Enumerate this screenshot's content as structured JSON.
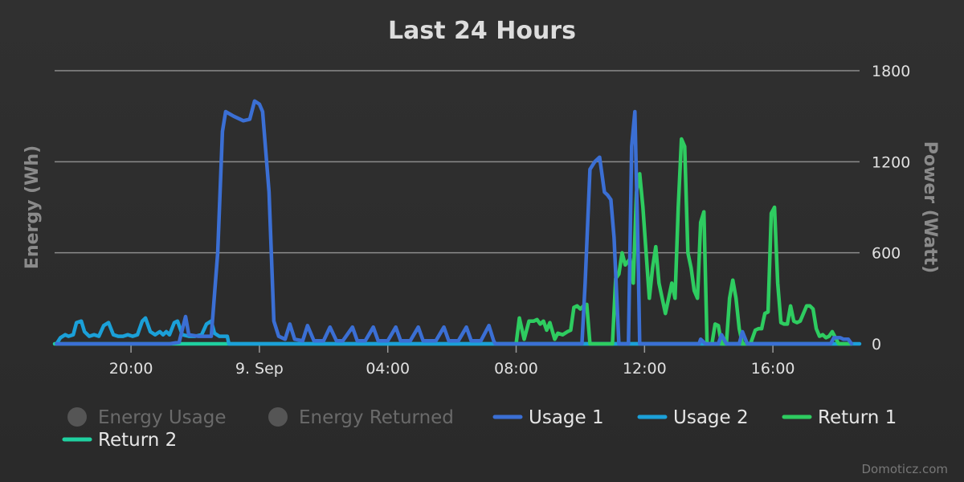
{
  "chart_data": {
    "type": "line",
    "title": "Last 24 Hours",
    "y_left": {
      "label": "Energy (Wh)"
    },
    "y_right": {
      "label": "Power (Watt)",
      "min": 0,
      "max": 1800,
      "ticks": [
        0,
        600,
        1200,
        1800
      ]
    },
    "x_axis": {
      "range_hours": [
        17.62,
        42.7
      ],
      "ticks": [
        {
          "label": "20:00",
          "hours": 20
        },
        {
          "label": "9. Sep",
          "hours": 24
        },
        {
          "label": "04:00",
          "hours": 28
        },
        {
          "label": "08:00",
          "hours": 32
        },
        {
          "label": "12:00",
          "hours": 36
        },
        {
          "label": "16:00",
          "hours": 40
        }
      ]
    },
    "grid": true,
    "legend": {
      "placement": "bottom",
      "items": [
        {
          "label": "Energy Usage",
          "symbol": "circle",
          "enabled": false,
          "color": "#555555"
        },
        {
          "label": "Energy Returned",
          "symbol": "circle",
          "enabled": false,
          "color": "#555555"
        },
        {
          "label": "Usage 1",
          "symbol": "line",
          "enabled": true,
          "color": "#3b6fd4"
        },
        {
          "label": "Usage 2",
          "symbol": "line",
          "enabled": true,
          "color": "#1ba0d8"
        },
        {
          "label": "Return 1",
          "symbol": "line",
          "enabled": true,
          "color": "#2ecc60"
        },
        {
          "label": "Return 2",
          "symbol": "line",
          "enabled": true,
          "color": "#1fd0a0"
        }
      ]
    },
    "series": [
      {
        "name": "Usage 1",
        "color": "#3b6fd4",
        "points": [
          [
            17.68,
            0
          ],
          [
            19.0,
            0
          ],
          [
            21.2,
            0
          ],
          [
            21.5,
            10
          ],
          [
            21.7,
            180
          ],
          [
            21.8,
            60
          ],
          [
            22.1,
            50
          ],
          [
            22.3,
            50
          ],
          [
            22.5,
            50
          ],
          [
            22.7,
            600
          ],
          [
            22.85,
            1400
          ],
          [
            22.95,
            1530
          ],
          [
            23.2,
            1500
          ],
          [
            23.5,
            1470
          ],
          [
            23.7,
            1480
          ],
          [
            23.85,
            1600
          ],
          [
            24.0,
            1580
          ],
          [
            24.1,
            1530
          ],
          [
            24.3,
            1000
          ],
          [
            24.45,
            150
          ],
          [
            24.6,
            50
          ],
          [
            24.8,
            30
          ],
          [
            24.95,
            130
          ],
          [
            25.1,
            30
          ],
          [
            25.35,
            20
          ],
          [
            25.5,
            120
          ],
          [
            25.7,
            20
          ],
          [
            26.0,
            20
          ],
          [
            26.2,
            110
          ],
          [
            26.4,
            20
          ],
          [
            26.6,
            20
          ],
          [
            26.9,
            110
          ],
          [
            27.05,
            20
          ],
          [
            27.3,
            20
          ],
          [
            27.55,
            110
          ],
          [
            27.7,
            20
          ],
          [
            28.0,
            20
          ],
          [
            28.25,
            110
          ],
          [
            28.4,
            20
          ],
          [
            28.7,
            20
          ],
          [
            28.95,
            110
          ],
          [
            29.1,
            20
          ],
          [
            29.5,
            20
          ],
          [
            29.75,
            110
          ],
          [
            29.9,
            20
          ],
          [
            30.2,
            20
          ],
          [
            30.45,
            110
          ],
          [
            30.6,
            20
          ],
          [
            30.9,
            20
          ],
          [
            31.15,
            120
          ],
          [
            31.3,
            20
          ],
          [
            31.35,
            0
          ],
          [
            34.05,
            0
          ],
          [
            34.15,
            400
          ],
          [
            34.3,
            1150
          ],
          [
            34.45,
            1200
          ],
          [
            34.6,
            1230
          ],
          [
            34.75,
            1000
          ],
          [
            34.85,
            980
          ],
          [
            34.95,
            950
          ],
          [
            35.05,
            700
          ],
          [
            35.2,
            0
          ],
          [
            35.5,
            0
          ],
          [
            35.6,
            1300
          ],
          [
            35.7,
            1530
          ],
          [
            35.8,
            600
          ],
          [
            35.85,
            0
          ],
          [
            37.0,
            0
          ],
          [
            37.7,
            0
          ],
          [
            37.75,
            30
          ],
          [
            37.9,
            0
          ],
          [
            38.3,
            0
          ],
          [
            38.4,
            60
          ],
          [
            38.55,
            0
          ],
          [
            38.95,
            0
          ],
          [
            39.05,
            80
          ],
          [
            39.2,
            0
          ],
          [
            41.8,
            0
          ],
          [
            41.9,
            40
          ],
          [
            42.1,
            40
          ],
          [
            42.2,
            30
          ],
          [
            42.35,
            30
          ],
          [
            42.45,
            0
          ]
        ]
      },
      {
        "name": "Usage 2",
        "color": "#1ba0d8",
        "points": [
          [
            17.68,
            0
          ],
          [
            17.8,
            40
          ],
          [
            17.95,
            60
          ],
          [
            18.05,
            50
          ],
          [
            18.2,
            60
          ],
          [
            18.3,
            140
          ],
          [
            18.45,
            150
          ],
          [
            18.55,
            80
          ],
          [
            18.7,
            50
          ],
          [
            18.85,
            60
          ],
          [
            19.0,
            50
          ],
          [
            19.15,
            120
          ],
          [
            19.3,
            140
          ],
          [
            19.45,
            60
          ],
          [
            19.6,
            50
          ],
          [
            19.75,
            50
          ],
          [
            19.9,
            60
          ],
          [
            20.05,
            50
          ],
          [
            20.2,
            60
          ],
          [
            20.35,
            150
          ],
          [
            20.45,
            170
          ],
          [
            20.6,
            80
          ],
          [
            20.75,
            60
          ],
          [
            20.9,
            80
          ],
          [
            21.0,
            60
          ],
          [
            21.1,
            80
          ],
          [
            21.2,
            60
          ],
          [
            21.35,
            140
          ],
          [
            21.45,
            150
          ],
          [
            21.6,
            60
          ],
          [
            21.8,
            50
          ],
          [
            22.0,
            50
          ],
          [
            22.2,
            60
          ],
          [
            22.35,
            130
          ],
          [
            22.5,
            150
          ],
          [
            22.6,
            70
          ],
          [
            22.75,
            50
          ],
          [
            22.9,
            50
          ],
          [
            23.0,
            50
          ],
          [
            23.05,
            0
          ],
          [
            42.7,
            0
          ]
        ]
      },
      {
        "name": "Return 1",
        "color": "#2ecc60",
        "points": [
          [
            32.0,
            0
          ],
          [
            32.1,
            170
          ],
          [
            32.25,
            30
          ],
          [
            32.4,
            150
          ],
          [
            32.55,
            150
          ],
          [
            32.65,
            160
          ],
          [
            32.75,
            130
          ],
          [
            32.85,
            150
          ],
          [
            32.95,
            90
          ],
          [
            33.05,
            140
          ],
          [
            33.2,
            30
          ],
          [
            33.3,
            70
          ],
          [
            33.45,
            60
          ],
          [
            33.6,
            80
          ],
          [
            33.7,
            90
          ],
          [
            33.8,
            240
          ],
          [
            33.9,
            250
          ],
          [
            34.0,
            230
          ],
          [
            34.1,
            250
          ],
          [
            34.2,
            260
          ],
          [
            34.3,
            0
          ],
          [
            35.0,
            0
          ],
          [
            35.1,
            430
          ],
          [
            35.2,
            460
          ],
          [
            35.3,
            600
          ],
          [
            35.4,
            520
          ],
          [
            35.55,
            560
          ],
          [
            35.65,
            400
          ],
          [
            35.75,
            1000
          ],
          [
            35.85,
            1120
          ],
          [
            35.95,
            900
          ],
          [
            36.05,
            600
          ],
          [
            36.15,
            300
          ],
          [
            36.25,
            500
          ],
          [
            36.35,
            640
          ],
          [
            36.45,
            400
          ],
          [
            36.55,
            300
          ],
          [
            36.65,
            200
          ],
          [
            36.75,
            300
          ],
          [
            36.85,
            400
          ],
          [
            36.95,
            300
          ],
          [
            37.05,
            900
          ],
          [
            37.15,
            1350
          ],
          [
            37.25,
            1300
          ],
          [
            37.35,
            600
          ],
          [
            37.45,
            500
          ],
          [
            37.55,
            350
          ],
          [
            37.65,
            300
          ],
          [
            37.75,
            800
          ],
          [
            37.85,
            870
          ],
          [
            37.95,
            0
          ],
          [
            38.1,
            0
          ],
          [
            38.2,
            130
          ],
          [
            38.3,
            120
          ],
          [
            38.4,
            0
          ],
          [
            38.55,
            0
          ],
          [
            38.65,
            300
          ],
          [
            38.75,
            420
          ],
          [
            38.85,
            300
          ],
          [
            38.95,
            100
          ],
          [
            39.05,
            0
          ],
          [
            39.3,
            0
          ],
          [
            39.45,
            90
          ],
          [
            39.55,
            100
          ],
          [
            39.65,
            100
          ],
          [
            39.75,
            200
          ],
          [
            39.85,
            210
          ],
          [
            39.95,
            860
          ],
          [
            40.05,
            900
          ],
          [
            40.15,
            400
          ],
          [
            40.25,
            140
          ],
          [
            40.35,
            130
          ],
          [
            40.45,
            130
          ],
          [
            40.55,
            250
          ],
          [
            40.65,
            150
          ],
          [
            40.75,
            140
          ],
          [
            40.85,
            150
          ],
          [
            40.95,
            200
          ],
          [
            41.05,
            250
          ],
          [
            41.15,
            250
          ],
          [
            41.25,
            230
          ],
          [
            41.35,
            100
          ],
          [
            41.45,
            50
          ],
          [
            41.55,
            60
          ],
          [
            41.65,
            40
          ],
          [
            41.75,
            50
          ],
          [
            41.85,
            80
          ],
          [
            41.95,
            40
          ],
          [
            42.05,
            0
          ],
          [
            42.45,
            0
          ]
        ]
      },
      {
        "name": "Return 2",
        "color": "#1fd0a0",
        "points": [
          [
            17.62,
            0
          ],
          [
            42.45,
            0
          ]
        ]
      }
    ],
    "credits": "Domoticz.com"
  }
}
